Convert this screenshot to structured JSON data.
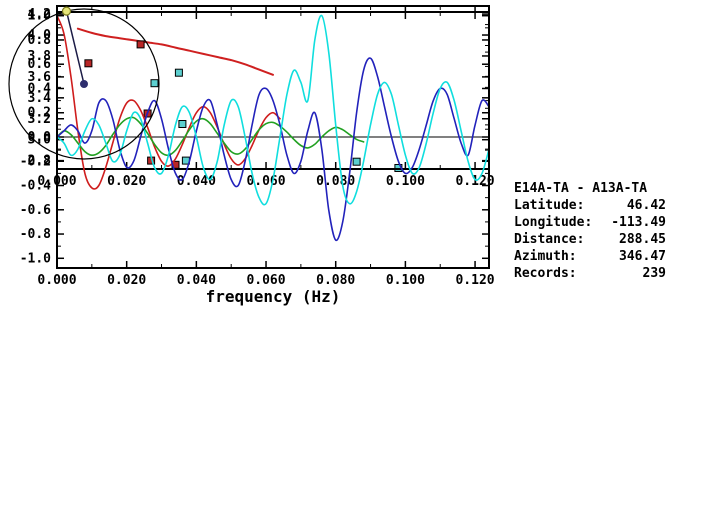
{
  "info_panel": {
    "title": "E14A-TA - A13A-TA",
    "rows": [
      {
        "name": "latitude",
        "label": "Latitude:",
        "value": "46.42"
      },
      {
        "name": "longitude",
        "label": "Longitude:",
        "value": "-113.49"
      },
      {
        "name": "distance",
        "label": "Distance:",
        "value": "288.45"
      },
      {
        "name": "azimuth",
        "label": "Azimuth:",
        "value": "346.47"
      },
      {
        "name": "records",
        "label": "Records:",
        "value": "239"
      }
    ]
  },
  "chart_data": [
    {
      "type": "scatter",
      "name": "dispersion",
      "xlabel": "",
      "xlim": [
        0,
        0.124
      ],
      "ylim": [
        2.72,
        4.22
      ],
      "xticks": [
        0,
        0.02,
        0.04,
        0.06,
        0.08,
        0.1,
        0.12
      ],
      "xtick_labels": [
        "0.000",
        "0.020",
        "0.040",
        "0.060",
        "0.080",
        "0.100",
        "0.120"
      ],
      "yticks": [
        2.8,
        3.0,
        3.2,
        3.4,
        3.6,
        3.8,
        4.0,
        4.2
      ],
      "ytick_labels": [
        "2.8",
        "3.0",
        "3.2",
        "3.4",
        "3.6",
        "3.8",
        "4.0",
        "4.2"
      ],
      "series": [
        {
          "name": "model-dispersion-curve",
          "color": "#cf2020",
          "width": 2,
          "points": [
            [
              0.006,
              4.06
            ],
            [
              0.01,
              4.02
            ],
            [
              0.014,
              3.99
            ],
            [
              0.018,
              3.97
            ],
            [
              0.022,
              3.95
            ],
            [
              0.026,
              3.93
            ],
            [
              0.03,
              3.91
            ],
            [
              0.034,
              3.88
            ],
            [
              0.038,
              3.85
            ],
            [
              0.042,
              3.82
            ],
            [
              0.046,
              3.79
            ],
            [
              0.05,
              3.76
            ],
            [
              0.054,
              3.72
            ],
            [
              0.058,
              3.67
            ],
            [
              0.062,
              3.62
            ]
          ]
        }
      ],
      "markers": [
        {
          "name": "red-measurement-square",
          "color": "#b82626",
          "points": [
            [
              0.009,
              3.73
            ],
            [
              0.024,
              3.91
            ],
            [
              0.026,
              3.25
            ],
            [
              0.027,
              2.8
            ],
            [
              0.034,
              2.76
            ]
          ]
        },
        {
          "name": "cyan-measurement-square",
          "color": "#5ccfcf",
          "points": [
            [
              0.028,
              3.54
            ],
            [
              0.035,
              3.64
            ],
            [
              0.036,
              3.15
            ],
            [
              0.037,
              2.8
            ],
            [
              0.086,
              2.79
            ],
            [
              0.098,
              2.73
            ]
          ]
        }
      ]
    },
    {
      "type": "polar-azimuth",
      "name": "station-azimuth",
      "azimuth_deg": 346.47,
      "circle_color": "#000000",
      "line_color": "#1b1b46",
      "end_marker_color": "#e6e67a",
      "end_marker_stroke": "#7a7a1e",
      "center_marker_color": "#2e2e6e"
    },
    {
      "type": "line",
      "name": "correlation",
      "xlabel": "frequency (Hz)",
      "xlim": [
        0,
        0.124
      ],
      "ylim": [
        -1.08,
        1.08
      ],
      "zero_line": true,
      "xticks": [
        0,
        0.02,
        0.04,
        0.06,
        0.08,
        0.1,
        0.12
      ],
      "xtick_labels": [
        "0.000",
        "0.020",
        "0.040",
        "0.060",
        "0.080",
        "0.100",
        "0.120"
      ],
      "yticks": [
        -1.0,
        -0.8,
        -0.6,
        -0.4,
        -0.2,
        0.0,
        0.2,
        0.4,
        0.6,
        0.8,
        1.0
      ],
      "ytick_labels": [
        "-1.0",
        "-0.8",
        "-0.6",
        "-0.4",
        "-0.2",
        "0.0",
        "0.2",
        "0.4",
        "0.6",
        "0.8",
        "1.0"
      ],
      "series": [
        {
          "name": "trace-red",
          "color": "#cf1d1d",
          "x_start": 0,
          "x_step": 0.002,
          "values": [
            1.0,
            0.85,
            0.5,
            0.05,
            -0.3,
            -0.42,
            -0.4,
            -0.25,
            -0.05,
            0.15,
            0.28,
            0.3,
            0.22,
            0.08,
            -0.08,
            -0.2,
            -0.24,
            -0.18,
            -0.06,
            0.08,
            0.2,
            0.25,
            0.2,
            0.08,
            -0.06,
            -0.18,
            -0.23,
            -0.18,
            -0.07,
            0.06,
            0.16,
            0.2,
            0.15
          ]
        },
        {
          "name": "trace-green",
          "color": "#22a122",
          "x_start": 0,
          "x_step": 0.002,
          "values": [
            0.0,
            0.05,
            0.02,
            -0.05,
            -0.12,
            -0.15,
            -0.13,
            -0.07,
            0.02,
            0.1,
            0.15,
            0.16,
            0.11,
            0.03,
            -0.06,
            -0.13,
            -0.15,
            -0.11,
            -0.03,
            0.06,
            0.13,
            0.15,
            0.11,
            0.03,
            -0.05,
            -0.12,
            -0.14,
            -0.1,
            -0.02,
            0.06,
            0.11,
            0.12,
            0.09,
            0.04,
            -0.02,
            -0.07,
            -0.09,
            -0.06,
            0.0,
            0.05,
            0.08,
            0.06,
            0.02,
            -0.02,
            -0.04
          ]
        },
        {
          "name": "trace-blue",
          "color": "#2222bb",
          "x_start": 0,
          "x_step": 0.002,
          "values": [
            0.0,
            0.05,
            0.1,
            0.05,
            -0.05,
            0.05,
            0.28,
            0.3,
            0.15,
            -0.1,
            -0.25,
            -0.2,
            0.0,
            0.2,
            0.3,
            0.15,
            -0.1,
            -0.3,
            -0.35,
            -0.2,
            0.05,
            0.25,
            0.3,
            0.1,
            -0.15,
            -0.35,
            -0.4,
            -0.2,
            0.1,
            0.35,
            0.4,
            0.3,
            0.1,
            -0.15,
            -0.3,
            -0.2,
            0.05,
            0.2,
            -0.1,
            -0.6,
            -0.85,
            -0.7,
            -0.3,
            0.2,
            0.55,
            0.65,
            0.5,
            0.25,
            0.0,
            -0.2,
            -0.3,
            -0.25,
            -0.1,
            0.1,
            0.3,
            0.4,
            0.35,
            0.15,
            -0.05,
            -0.15,
            0.1,
            0.3,
            0.25
          ]
        },
        {
          "name": "trace-cyan",
          "color": "#10dede",
          "x_start": 0,
          "x_step": 0.002,
          "values": [
            0.0,
            -0.05,
            -0.15,
            -0.1,
            0.05,
            0.15,
            0.1,
            -0.05,
            -0.2,
            -0.15,
            0.05,
            0.2,
            0.15,
            -0.05,
            -0.25,
            -0.3,
            -0.15,
            0.1,
            0.25,
            0.2,
            0.0,
            -0.25,
            -0.35,
            -0.2,
            0.1,
            0.3,
            0.25,
            0.0,
            -0.3,
            -0.5,
            -0.55,
            -0.35,
            0.0,
            0.35,
            0.55,
            0.45,
            0.3,
            0.8,
            1.0,
            0.7,
            0.1,
            -0.4,
            -0.55,
            -0.45,
            -0.2,
            0.1,
            0.35,
            0.45,
            0.35,
            0.1,
            -0.15,
            -0.3,
            -0.25,
            -0.05,
            0.2,
            0.4,
            0.45,
            0.3,
            0.05,
            -0.2,
            -0.35,
            -0.3,
            -0.1
          ]
        }
      ]
    }
  ]
}
